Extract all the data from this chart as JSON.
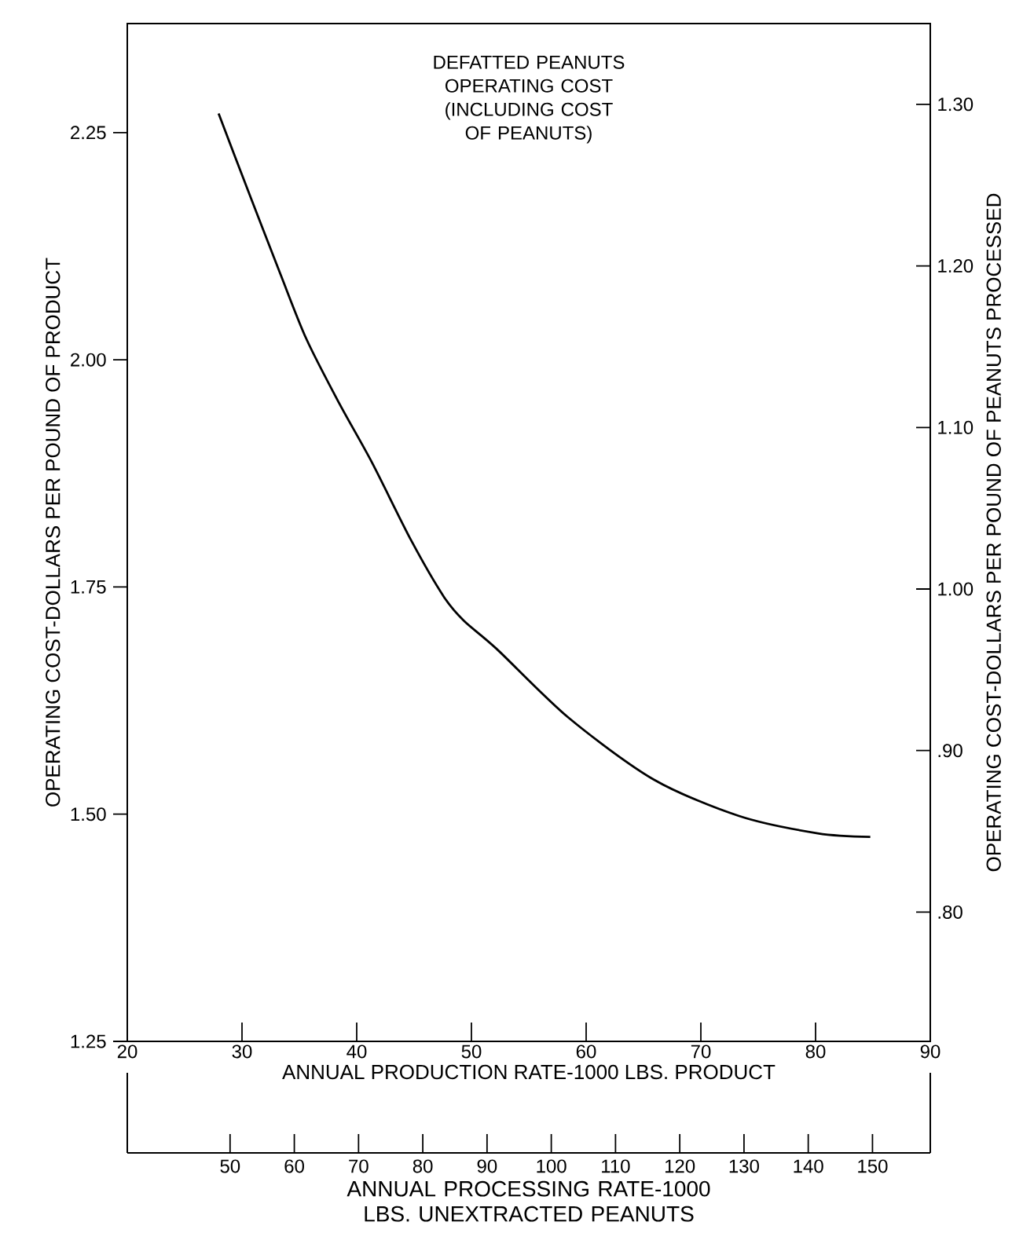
{
  "chart_data": {
    "type": "line",
    "title": "DEFATTED PEANUTS OPERATING COST (INCLUDING COST OF PEANUTS)",
    "xlabel": "ANNUAL PRODUCTION RATE-1000 LBS. PRODUCT",
    "x2label": "ANNUAL PROCESSING RATE-1000 LBS. UNEXTRACTED PEANUTS",
    "ylabel": "OPERATING COST-DOLLARS PER POUND OF PRODUCT",
    "y2label": "OPERATING COST-DOLLARS PER POUND OF PEANUTS PROCESSED",
    "xlim": [
      20,
      90
    ],
    "xticks": [
      20,
      30,
      40,
      50,
      60,
      70,
      80,
      90
    ],
    "x2lim": [
      34,
      159
    ],
    "x2ticks": [
      50,
      60,
      70,
      80,
      90,
      100,
      110,
      120,
      130,
      140,
      150
    ],
    "ylim": [
      1.25,
      2.37
    ],
    "yticks": [
      {
        "value": 1.25,
        "label": "1.25"
      },
      {
        "value": 1.5,
        "label": "1.50"
      },
      {
        "value": 1.75,
        "label": "1.75"
      },
      {
        "value": 2.0,
        "label": "2.00"
      },
      {
        "value": 2.25,
        "label": "2.25"
      }
    ],
    "y2lim": [
      0.72,
      1.35
    ],
    "y2ticks": [
      {
        "value": 0.8,
        "label": ".80"
      },
      {
        "value": 0.9,
        "label": ".90"
      },
      {
        "value": 1.0,
        "label": "1.00"
      },
      {
        "value": 1.1,
        "label": "1.10"
      },
      {
        "value": 1.2,
        "label": "1.20"
      },
      {
        "value": 1.3,
        "label": "1.30"
      }
    ],
    "marker": "none",
    "line_style": "solid",
    "x": [
      27.96,
      30.47,
      33.33,
      35.61,
      38.48,
      41.33,
      44.76,
      47.61,
      49.33,
      52.19,
      58.48,
      65.91,
      73.33,
      80.19,
      84.77
    ],
    "series": [
      {
        "color": "#000000",
        "values": [
          2.271,
          2.188,
          2.095,
          2.023,
          1.952,
          1.887,
          1.801,
          1.739,
          1.713,
          1.682,
          1.606,
          1.538,
          1.498,
          1.479,
          1.475
        ]
      }
    ]
  }
}
